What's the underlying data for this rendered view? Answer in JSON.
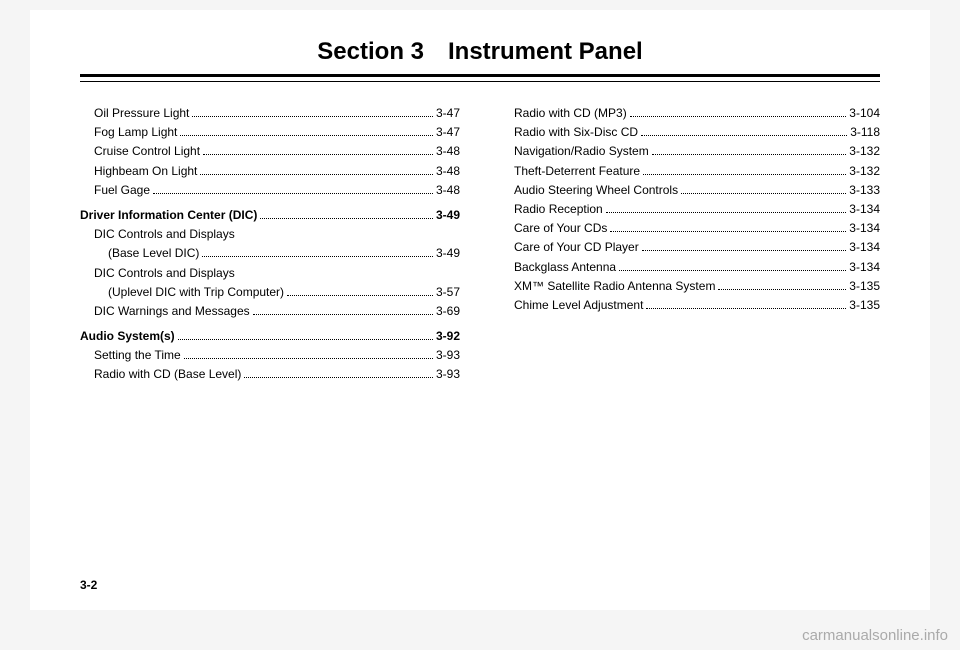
{
  "title": "Section 3 Instrument Panel",
  "page_number": "3-2",
  "watermark": "carmanualsonline.info",
  "left_column": [
    {
      "label": "Oil Pressure Light",
      "page": "3-47",
      "bold": false,
      "indent": 1
    },
    {
      "label": "Fog Lamp Light",
      "page": "3-47",
      "bold": false,
      "indent": 1
    },
    {
      "label": "Cruise Control Light",
      "page": "3-48",
      "bold": false,
      "indent": 1
    },
    {
      "label": "Highbeam On Light",
      "page": "3-48",
      "bold": false,
      "indent": 1
    },
    {
      "label": "Fuel Gage",
      "page": "3-48",
      "bold": false,
      "indent": 1
    },
    {
      "label": "Driver Information Center (DIC)",
      "page": "3-49",
      "bold": true,
      "indent": 0
    },
    {
      "label": "DIC Controls and Displays",
      "page": "",
      "bold": false,
      "indent": 1
    },
    {
      "label": "(Base Level DIC)",
      "page": "3-49",
      "bold": false,
      "indent": 2
    },
    {
      "label": "DIC Controls and Displays",
      "page": "",
      "bold": false,
      "indent": 1
    },
    {
      "label": "(Uplevel DIC with Trip Computer)",
      "page": "3-57",
      "bold": false,
      "indent": 2
    },
    {
      "label": "DIC Warnings and Messages",
      "page": "3-69",
      "bold": false,
      "indent": 1
    },
    {
      "label": "Audio System(s)",
      "page": "3-92",
      "bold": true,
      "indent": 0
    },
    {
      "label": "Setting the Time",
      "page": "3-93",
      "bold": false,
      "indent": 1
    },
    {
      "label": "Radio with CD (Base Level)",
      "page": "3-93",
      "bold": false,
      "indent": 1
    }
  ],
  "right_column": [
    {
      "label": "Radio with CD (MP3)",
      "page": "3-104",
      "bold": false,
      "indent": 1
    },
    {
      "label": "Radio with Six-Disc CD",
      "page": "3-118",
      "bold": false,
      "indent": 1
    },
    {
      "label": "Navigation/Radio System",
      "page": "3-132",
      "bold": false,
      "indent": 1
    },
    {
      "label": "Theft-Deterrent Feature",
      "page": "3-132",
      "bold": false,
      "indent": 1
    },
    {
      "label": "Audio Steering Wheel Controls",
      "page": "3-133",
      "bold": false,
      "indent": 1
    },
    {
      "label": "Radio Reception",
      "page": "3-134",
      "bold": false,
      "indent": 1
    },
    {
      "label": "Care of Your CDs",
      "page": "3-134",
      "bold": false,
      "indent": 1
    },
    {
      "label": "Care of Your CD Player",
      "page": "3-134",
      "bold": false,
      "indent": 1
    },
    {
      "label": "Backglass Antenna",
      "page": "3-134",
      "bold": false,
      "indent": 1
    },
    {
      "label": "XM™ Satellite Radio Antenna System",
      "page": "3-135",
      "bold": false,
      "indent": 1
    },
    {
      "label": "Chime Level Adjustment",
      "page": "3-135",
      "bold": false,
      "indent": 1
    }
  ]
}
